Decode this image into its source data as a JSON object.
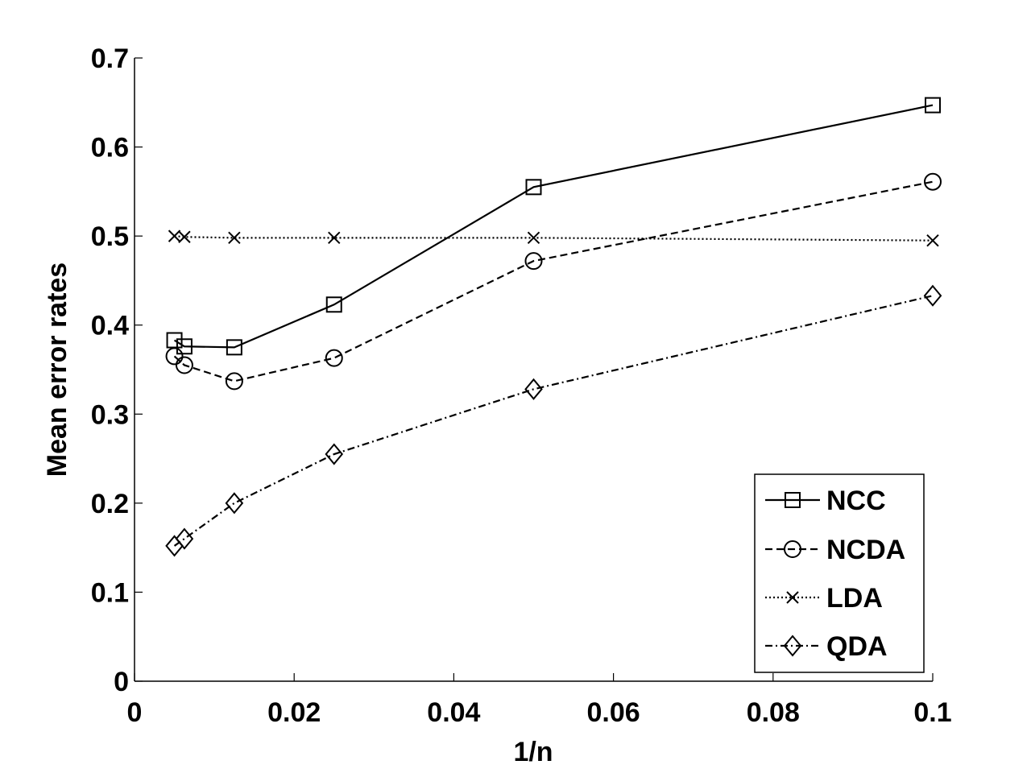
{
  "chart_data": {
    "type": "line",
    "title": "",
    "xlabel": "1/n",
    "ylabel": "Mean error rates",
    "xlim": [
      0,
      0.1
    ],
    "ylim": [
      0,
      0.7
    ],
    "xticks": [
      0,
      0.02,
      0.04,
      0.06,
      0.08,
      0.1
    ],
    "xtick_labels": [
      "0",
      "0.02",
      "0.04",
      "0.06",
      "0.08",
      "0.1"
    ],
    "yticks": [
      0,
      0.1,
      0.2,
      0.3,
      0.4,
      0.5,
      0.6,
      0.7
    ],
    "ytick_labels": [
      "0",
      "0.1",
      "0.2",
      "0.3",
      "0.4",
      "0.5",
      "0.6",
      "0.7"
    ],
    "grid": false,
    "legend_position": "bottom-right",
    "x": [
      0.005,
      0.00625,
      0.0125,
      0.025,
      0.05,
      0.1
    ],
    "series": [
      {
        "name": "NCC",
        "marker": "square",
        "dash": "solid",
        "values": [
          0.383,
          0.376,
          0.375,
          0.423,
          0.555,
          0.647
        ]
      },
      {
        "name": "NCDA",
        "marker": "circle",
        "dash": "dashed",
        "values": [
          0.365,
          0.355,
          0.337,
          0.363,
          0.472,
          0.561
        ]
      },
      {
        "name": "LDA",
        "marker": "x",
        "dash": "dotted",
        "values": [
          0.5,
          0.499,
          0.498,
          0.498,
          0.498,
          0.495
        ]
      },
      {
        "name": "QDA",
        "marker": "diamond",
        "dash": "dashdot",
        "values": [
          0.152,
          0.16,
          0.2,
          0.255,
          0.328,
          0.433
        ]
      }
    ],
    "colors": {
      "line": "#000000",
      "background": "#ffffff"
    }
  }
}
